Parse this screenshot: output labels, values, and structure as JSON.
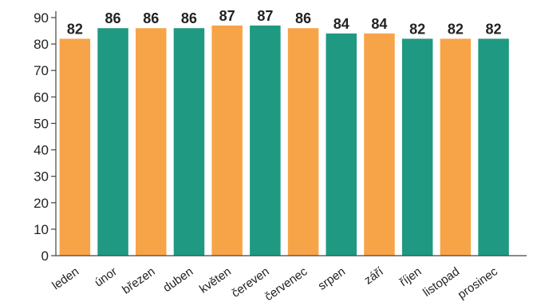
{
  "chart_data": {
    "type": "bar",
    "title": "",
    "xlabel": "",
    "ylabel": "",
    "categories": [
      "leden",
      "únor",
      "březen",
      "duben",
      "květen",
      "čereven",
      "červenec",
      "srpen",
      "září",
      "říjen",
      "listopad",
      "prosinec"
    ],
    "values": [
      82,
      86,
      86,
      86,
      87,
      87,
      86,
      84,
      84,
      82,
      82,
      82
    ],
    "ylim": [
      0,
      90
    ],
    "yticks": [
      0,
      10,
      20,
      30,
      40,
      50,
      60,
      70,
      80,
      90
    ],
    "grid": false,
    "legend": "none",
    "data_labels": true,
    "colors": {
      "orange": "#F7A448",
      "teal": "#1F9982"
    },
    "bar_colors": [
      "orange",
      "teal",
      "orange",
      "teal",
      "orange",
      "teal",
      "orange",
      "teal",
      "orange",
      "teal",
      "orange",
      "teal"
    ]
  }
}
